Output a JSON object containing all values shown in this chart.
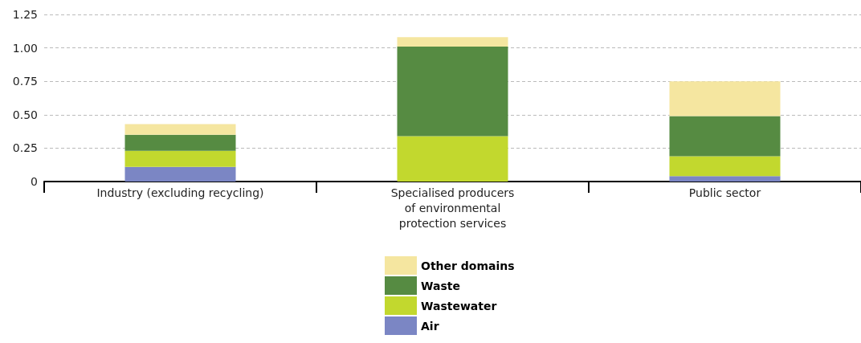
{
  "chart_data": {
    "type": "bar",
    "stacked": true,
    "categories": [
      "Industry (excluding recycling)",
      "Specialised producers\nof environmental\nprotection services",
      "Public sector"
    ],
    "series": [
      {
        "name": "Air",
        "color": "#7b86c4",
        "values": [
          0.11,
          0,
          0.04
        ]
      },
      {
        "name": "Wastewater",
        "color": "#c2d82e",
        "values": [
          0.12,
          0.34,
          0.15
        ]
      },
      {
        "name": "Waste",
        "color": "#568b42",
        "values": [
          0.12,
          0.67,
          0.3
        ]
      },
      {
        "name": "Other domains",
        "color": "#f5e6a0",
        "values": [
          0.08,
          0.07,
          0.26
        ]
      }
    ],
    "ylim": [
      0,
      1.25
    ],
    "yticks": [
      {
        "value": 0,
        "label": "0"
      },
      {
        "value": 0.25,
        "label": "0.25"
      },
      {
        "value": 0.5,
        "label": "0.50"
      },
      {
        "value": 0.75,
        "label": "0.75"
      },
      {
        "value": 1,
        "label": "1.00"
      },
      {
        "value": 1.25,
        "label": "1.25"
      }
    ],
    "grid": "y",
    "legend": "bottom"
  }
}
